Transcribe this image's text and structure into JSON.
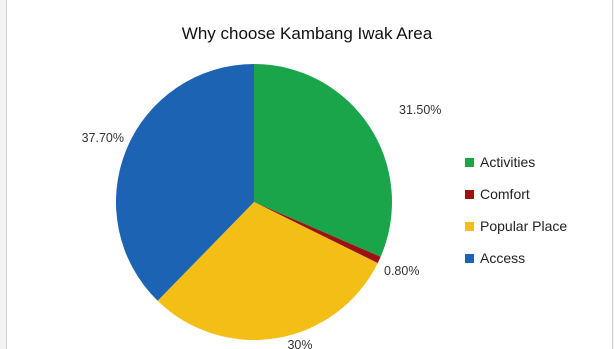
{
  "chart_data": {
    "type": "pie",
    "title": "Why choose Kambang Iwak Area",
    "categories": [
      "Activities",
      "Comfort",
      "Popular Place",
      "Access"
    ],
    "values": [
      31.5,
      0.8,
      30.0,
      37.7
    ],
    "value_labels": [
      "31.50%",
      "0.80%",
      "30%",
      "37.70%"
    ],
    "colors": [
      "#1aa54a",
      "#9c1111",
      "#f3be16",
      "#1c64b3"
    ],
    "start": "12 o'clock",
    "direction": "clockwise",
    "legend_position": "right"
  }
}
